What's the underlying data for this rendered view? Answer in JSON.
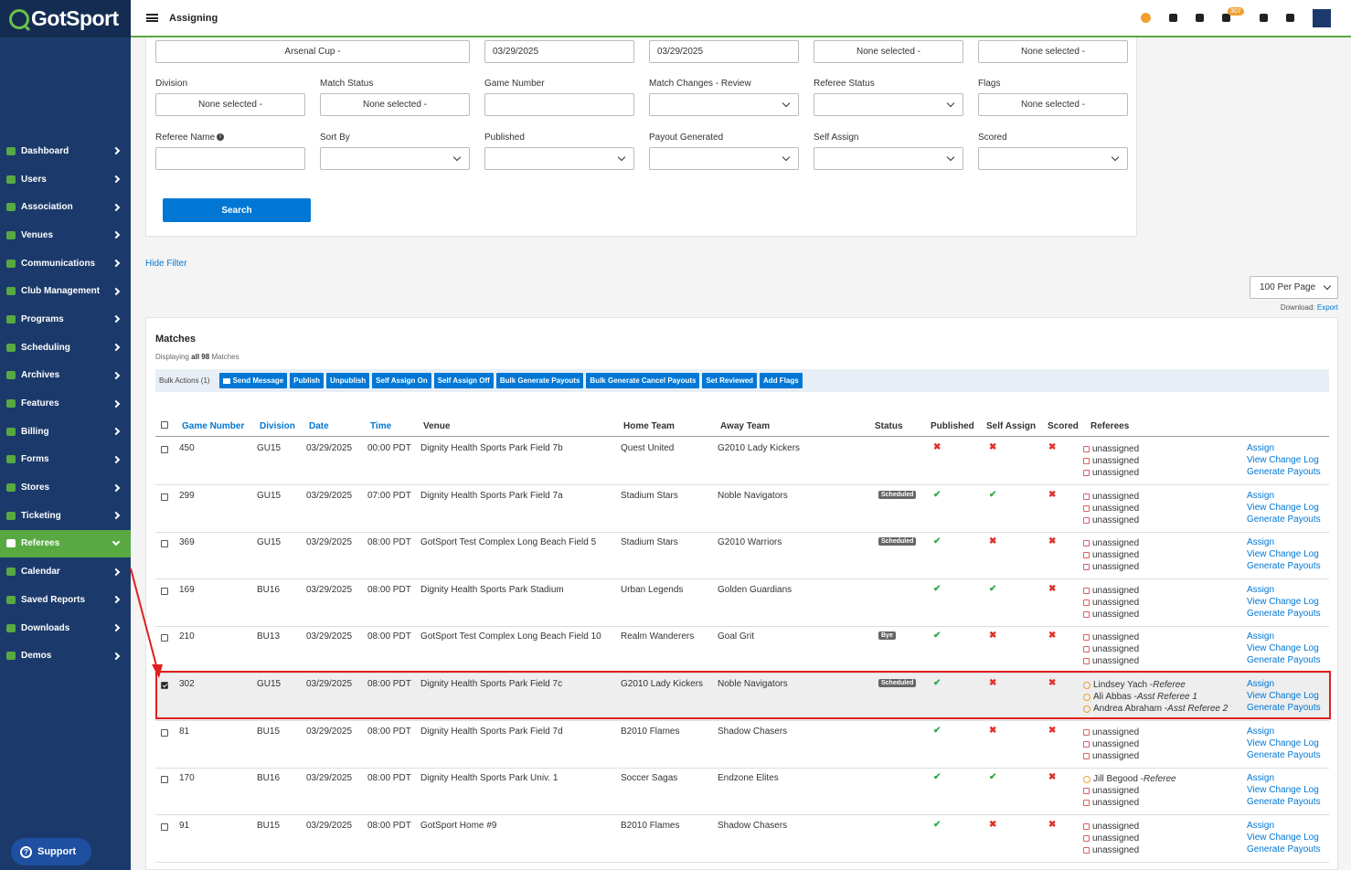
{
  "app": {
    "logo": "GotSport",
    "page_heading": "Assigning",
    "notification_count": "307"
  },
  "sidebar": {
    "items": [
      {
        "label": "Dashboard"
      },
      {
        "label": "Users"
      },
      {
        "label": "Association"
      },
      {
        "label": "Venues"
      },
      {
        "label": "Communications"
      },
      {
        "label": "Club Management"
      },
      {
        "label": "Programs"
      },
      {
        "label": "Scheduling"
      },
      {
        "label": "Archives"
      },
      {
        "label": "Features"
      },
      {
        "label": "Billing"
      },
      {
        "label": "Forms"
      },
      {
        "label": "Stores"
      },
      {
        "label": "Ticketing"
      },
      {
        "label": "Referees"
      },
      {
        "label": "Calendar"
      },
      {
        "label": "Saved Reports"
      },
      {
        "label": "Downloads"
      },
      {
        "label": "Demos"
      }
    ],
    "active_item": "Referees",
    "support_label": "Support"
  },
  "filters": {
    "top_row": [
      "Arsenal Cup -",
      "03/29/2025",
      "03/29/2025",
      "None selected -",
      "None selected -"
    ],
    "division": {
      "label": "Division",
      "value": "None selected -"
    },
    "match_status": {
      "label": "Match Status",
      "value": "None selected -"
    },
    "game_number": {
      "label": "Game Number",
      "value": ""
    },
    "match_changes": {
      "label": "Match Changes - Review",
      "value": ""
    },
    "referee_status": {
      "label": "Referee Status",
      "value": ""
    },
    "flags": {
      "label": "Flags",
      "value": "None selected -"
    },
    "referee_name": {
      "label": "Referee Name",
      "value": ""
    },
    "sort_by": {
      "label": "Sort By",
      "value": ""
    },
    "published": {
      "label": "Published",
      "value": ""
    },
    "payout_generated": {
      "label": "Payout Generated",
      "value": ""
    },
    "self_assign": {
      "label": "Self Assign",
      "value": ""
    },
    "scored": {
      "label": "Scored",
      "value": ""
    },
    "search_label": "Search"
  },
  "hide_filter_label": "Hide Filter",
  "per_page": "100 Per Page",
  "download": {
    "label": "Download:",
    "link": "Export"
  },
  "matches": {
    "title": "Matches",
    "displaying": "Displaying",
    "displaying_bold": "all 98",
    "displaying_suffix": "Matches",
    "bulk_label": "Bulk Actions (1)",
    "bulk_buttons": [
      "Send Message",
      "Publish",
      "Unpublish",
      "Self Assign On",
      "Self Assign Off",
      "Bulk Generate Payouts",
      "Bulk Generate Cancel Payouts",
      "Set Reviewed",
      "Add Flags"
    ],
    "columns": [
      "Game Number",
      "Division",
      "Date",
      "Time",
      "Venue",
      "Home Team",
      "Away Team",
      "Status",
      "Published",
      "Self Assign",
      "Scored",
      "Referees"
    ],
    "action_links": [
      "Assign",
      "View Change Log",
      "Generate Payouts"
    ],
    "rows": [
      {
        "game": "450",
        "division": "GU15",
        "date": "03/29/2025",
        "time": "00:00 PDT",
        "venue": "Dignity Health Sports Park Field 7b",
        "home": "Quest United",
        "away": "G2010 Lady Kickers",
        "status": "",
        "published": false,
        "self_assign": false,
        "scored": false,
        "checked": false,
        "refs": [
          {
            "name": "unassigned",
            "role": ""
          },
          {
            "name": "unassigned",
            "role": ""
          },
          {
            "name": "unassigned",
            "role": ""
          }
        ]
      },
      {
        "game": "299",
        "division": "GU15",
        "date": "03/29/2025",
        "time": "07:00 PDT",
        "venue": "Dignity Health Sports Park Field 7a",
        "home": "Stadium Stars",
        "away": "Noble Navigators",
        "status": "Scheduled",
        "published": true,
        "self_assign": true,
        "scored": false,
        "checked": false,
        "refs": [
          {
            "name": "unassigned",
            "role": ""
          },
          {
            "name": "unassigned",
            "role": ""
          },
          {
            "name": "unassigned",
            "role": ""
          }
        ]
      },
      {
        "game": "369",
        "division": "GU15",
        "date": "03/29/2025",
        "time": "08:00 PDT",
        "venue": "GotSport Test Complex Long Beach Field 5",
        "home": "Stadium Stars",
        "away": "G2010 Warriors",
        "status": "Scheduled",
        "published": true,
        "self_assign": false,
        "scored": false,
        "checked": false,
        "refs": [
          {
            "name": "unassigned",
            "role": ""
          },
          {
            "name": "unassigned",
            "role": ""
          },
          {
            "name": "unassigned",
            "role": ""
          }
        ]
      },
      {
        "game": "169",
        "division": "BU16",
        "date": "03/29/2025",
        "time": "08:00 PDT",
        "venue": "Dignity Health Sports Park Stadium",
        "home": "Urban Legends",
        "away": "Golden Guardians",
        "status": "",
        "published": true,
        "self_assign": true,
        "scored": false,
        "checked": false,
        "refs": [
          {
            "name": "unassigned",
            "role": ""
          },
          {
            "name": "unassigned",
            "role": ""
          },
          {
            "name": "unassigned",
            "role": ""
          }
        ]
      },
      {
        "game": "210",
        "division": "BU13",
        "date": "03/29/2025",
        "time": "08:00 PDT",
        "venue": "GotSport Test Complex Long Beach Field 10",
        "home": "Realm Wanderers",
        "away": "Goal Grit",
        "status": "Bye",
        "published": true,
        "self_assign": false,
        "scored": false,
        "checked": false,
        "refs": [
          {
            "name": "unassigned",
            "role": ""
          },
          {
            "name": "unassigned",
            "role": ""
          },
          {
            "name": "unassigned",
            "role": ""
          }
        ]
      },
      {
        "game": "302",
        "division": "GU15",
        "date": "03/29/2025",
        "time": "08:00 PDT",
        "venue": "Dignity Health Sports Park Field 7c",
        "home": "G2010 Lady Kickers",
        "away": "Noble Navigators",
        "status": "Scheduled",
        "published": true,
        "self_assign": false,
        "scored": false,
        "checked": true,
        "refs": [
          {
            "name": "Lindsey Yach - ",
            "role": "Referee"
          },
          {
            "name": "Ali Abbas - ",
            "role": "Asst Referee 1"
          },
          {
            "name": "Andrea Abraham - ",
            "role": "Asst Referee 2"
          }
        ]
      },
      {
        "game": "81",
        "division": "BU15",
        "date": "03/29/2025",
        "time": "08:00 PDT",
        "venue": "Dignity Health Sports Park Field 7d",
        "home": "B2010 Flames",
        "away": "Shadow Chasers",
        "status": "",
        "published": true,
        "self_assign": false,
        "scored": false,
        "checked": false,
        "refs": [
          {
            "name": "unassigned",
            "role": ""
          },
          {
            "name": "unassigned",
            "role": ""
          },
          {
            "name": "unassigned",
            "role": ""
          }
        ]
      },
      {
        "game": "170",
        "division": "BU16",
        "date": "03/29/2025",
        "time": "08:00 PDT",
        "venue": "Dignity Health Sports Park Univ. 1",
        "home": "Soccer Sagas",
        "away": "Endzone Elites",
        "status": "",
        "published": true,
        "self_assign": true,
        "scored": false,
        "checked": false,
        "refs": [
          {
            "name": "Jill Begood - ",
            "role": "Referee"
          },
          {
            "name": "unassigned",
            "role": ""
          },
          {
            "name": "unassigned",
            "role": ""
          }
        ]
      },
      {
        "game": "91",
        "division": "BU15",
        "date": "03/29/2025",
        "time": "08:00 PDT",
        "venue": "GotSport Home #9",
        "home": "B2010 Flames",
        "away": "Shadow Chasers",
        "status": "",
        "published": true,
        "self_assign": false,
        "scored": false,
        "checked": false,
        "refs": [
          {
            "name": "unassigned",
            "role": ""
          },
          {
            "name": "unassigned",
            "role": ""
          },
          {
            "name": "unassigned",
            "role": ""
          }
        ]
      }
    ]
  },
  "colors": {
    "sidebar": "#1b3a6b",
    "active": "#58a942",
    "link": "#0077d4",
    "annotation": "#e02020"
  }
}
